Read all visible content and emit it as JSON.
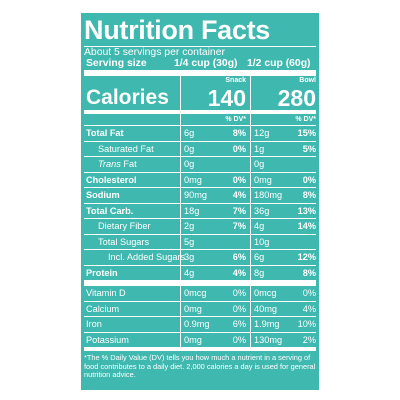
{
  "label": {
    "title": "Nutrition Facts",
    "servings_per_container": "About 5 servings per container",
    "serving_size_label": "Serving size",
    "serving_size_snack": "1/4 cup (30g)",
    "serving_size_bowl": "1/2 cup (60g)",
    "col_snack": "Snack",
    "col_bowl": "Bowl",
    "calories_label": "Calories",
    "calories_snack": "140",
    "calories_bowl": "280",
    "dv_header": "% DV*",
    "rows": [
      {
        "name": "Total Fat",
        "snack_amt": "6g",
        "snack_dv": "8%",
        "bowl_amt": "12g",
        "bowl_dv": "15%"
      },
      {
        "name": "Saturated Fat",
        "snack_amt": "0g",
        "snack_dv": "0%",
        "bowl_amt": "1g",
        "bowl_dv": "5%"
      },
      {
        "name_prefix": "Trans",
        "name_suffix": " Fat",
        "snack_amt": "0g",
        "snack_dv": "",
        "bowl_amt": "0g",
        "bowl_dv": ""
      },
      {
        "name": "Cholesterol",
        "snack_amt": "0mg",
        "snack_dv": "0%",
        "bowl_amt": "0mg",
        "bowl_dv": "0%"
      },
      {
        "name": "Sodium",
        "snack_amt": "90mg",
        "snack_dv": "4%",
        "bowl_amt": "180mg",
        "bowl_dv": "8%"
      },
      {
        "name": "Total Carb.",
        "snack_amt": "18g",
        "snack_dv": "7%",
        "bowl_amt": "36g",
        "bowl_dv": "13%"
      },
      {
        "name": "Dietary Fiber",
        "snack_amt": "2g",
        "snack_dv": "7%",
        "bowl_amt": "4g",
        "bowl_dv": "14%"
      },
      {
        "name": "Total Sugars",
        "snack_amt": "5g",
        "snack_dv": "",
        "bowl_amt": "10g",
        "bowl_dv": ""
      },
      {
        "name": "Incl. Added Sugars",
        "snack_amt": "3g",
        "snack_dv": "6%",
        "bowl_amt": "6g",
        "bowl_dv": "12%"
      },
      {
        "name": "Protein",
        "snack_amt": "4g",
        "snack_dv": "4%",
        "bowl_amt": "8g",
        "bowl_dv": "8%"
      },
      {
        "name": "Vitamin D",
        "snack_amt": "0mcg",
        "snack_dv": "0%",
        "bowl_amt": "0mcg",
        "bowl_dv": "0%"
      },
      {
        "name": "Calcium",
        "snack_amt": "0mg",
        "snack_dv": "0%",
        "bowl_amt": "40mg",
        "bowl_dv": "4%"
      },
      {
        "name": "Iron",
        "snack_amt": "0.9mg",
        "snack_dv": "6%",
        "bowl_amt": "1.9mg",
        "bowl_dv": "10%"
      },
      {
        "name": "Potassium",
        "snack_amt": "0mg",
        "snack_dv": "0%",
        "bowl_amt": "130mg",
        "bowl_dv": "2%"
      }
    ],
    "footnote": "*The % Daily Value (DV) tells you how much a nutrient in a serving of food contributes to a daily diet. 2,000 calories a day is used for general nutrition advice."
  },
  "colors": {
    "background": "#3fb8af",
    "text": "#ffffff"
  }
}
